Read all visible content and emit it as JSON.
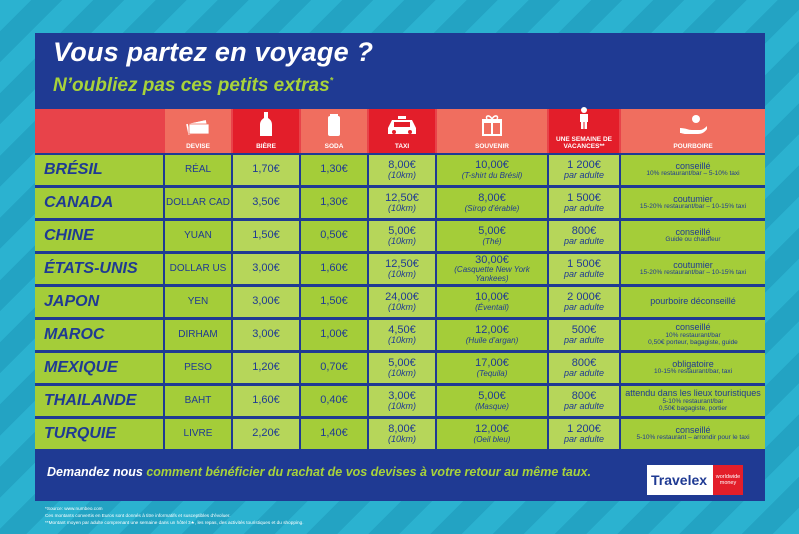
{
  "title": "Vous partez en voyage ?",
  "subtitle": "N’oubliez pas ces petits extras",
  "subtitle_mark": "*",
  "headers": {
    "devise": "DEVISE",
    "biere": "BIÈRE",
    "soda": "SODA",
    "taxi": "TAXI",
    "souvenir": "SOUVENIR",
    "semaine": "UNE SEMAINE DE VACANCES**",
    "pourboire": "POURBOIRE"
  },
  "icons": {
    "devise": "banknotes-icon",
    "biere": "bottle-icon",
    "soda": "can-icon",
    "taxi": "taxi-icon",
    "souvenir": "gift-icon",
    "semaine": "person-icon",
    "pourboire": "tip-hand-icon"
  },
  "rows": [
    {
      "country": "BRÉSIL",
      "devise": "RÉAL",
      "biere": "1,70€",
      "soda": "1,30€",
      "taxi": "8,00€",
      "taxi_sub": "(10km)",
      "souvenir": "10,00€",
      "souvenir_sub": "(T-shirt du Brésil)",
      "semaine": "1 200€",
      "semaine_sub": "par adulte",
      "pourboire": "conseillé",
      "pourboire_sub": "10% restaurant/bar – 5-10% taxi",
      "pourboire_sub2": ""
    },
    {
      "country": "CANADA",
      "devise": "DOLLAR CAD",
      "biere": "3,50€",
      "soda": "1,30€",
      "taxi": "12,50€",
      "taxi_sub": "(10km)",
      "souvenir": "8,00€",
      "souvenir_sub": "(Sirop d’érable)",
      "semaine": "1 500€",
      "semaine_sub": "par adulte",
      "pourboire": "coutumier",
      "pourboire_sub": "15-20% restaurant/bar – 10-15% taxi",
      "pourboire_sub2": ""
    },
    {
      "country": "CHINE",
      "devise": "YUAN",
      "biere": "1,50€",
      "soda": "0,50€",
      "taxi": "5,00€",
      "taxi_sub": "(10km)",
      "souvenir": "5,00€",
      "souvenir_sub": "(Thé)",
      "semaine": "800€",
      "semaine_sub": "par adulte",
      "pourboire": "conseillé",
      "pourboire_sub": "Guide ou chauffeur",
      "pourboire_sub2": ""
    },
    {
      "country": "ÉTATS-UNIS",
      "devise": "DOLLAR US",
      "biere": "3,00€",
      "soda": "1,60€",
      "taxi": "12,50€",
      "taxi_sub": "(10km)",
      "souvenir": "30,00€",
      "souvenir_sub": "(Casquette New York Yankees)",
      "semaine": "1 500€",
      "semaine_sub": "par adulte",
      "pourboire": "coutumier",
      "pourboire_sub": "15-20% restaurant/bar – 10-15% taxi",
      "pourboire_sub2": ""
    },
    {
      "country": "JAPON",
      "devise": "YEN",
      "biere": "3,00€",
      "soda": "1,50€",
      "taxi": "24,00€",
      "taxi_sub": "(10km)",
      "souvenir": "10,00€",
      "souvenir_sub": "(Éventail)",
      "semaine": "2 000€",
      "semaine_sub": "par adulte",
      "pourboire": "pourboire déconseillé",
      "pourboire_sub": "",
      "pourboire_sub2": ""
    },
    {
      "country": "MAROC",
      "devise": "DIRHAM",
      "biere": "3,00€",
      "soda": "1,00€",
      "taxi": "4,50€",
      "taxi_sub": "(10km)",
      "souvenir": "12,00€",
      "souvenir_sub": "(Huile d’argan)",
      "semaine": "500€",
      "semaine_sub": "par adulte",
      "pourboire": "conseillé",
      "pourboire_sub": "10% restaurant/bar",
      "pourboire_sub2": "0,50€ porteur, bagagiste, guide"
    },
    {
      "country": "MEXIQUE",
      "devise": "PESO",
      "biere": "1,20€",
      "soda": "0,70€",
      "taxi": "5,00€",
      "taxi_sub": "(10km)",
      "souvenir": "17,00€",
      "souvenir_sub": "(Tequila)",
      "semaine": "800€",
      "semaine_sub": "par adulte",
      "pourboire": "obligatoire",
      "pourboire_sub": "10-15% restaurant/bar, taxi",
      "pourboire_sub2": ""
    },
    {
      "country": "THAILANDE",
      "devise": "BAHT",
      "biere": "1,60€",
      "soda": "0,40€",
      "taxi": "3,00€",
      "taxi_sub": "(10km)",
      "souvenir": "5,00€",
      "souvenir_sub": "(Masque)",
      "semaine": "800€",
      "semaine_sub": "par adulte",
      "pourboire": "attendu dans les lieux touristiques",
      "pourboire_sub": "5-10% restaurant/bar",
      "pourboire_sub2": "0,50€ bagagiste, portier"
    },
    {
      "country": "TURQUIE",
      "devise": "LIVRE",
      "biere": "2,20€",
      "soda": "1,40€",
      "taxi": "8,00€",
      "taxi_sub": "(10km)",
      "souvenir": "12,00€",
      "souvenir_sub": "(Oeil bleu)",
      "semaine": "1 200€",
      "semaine_sub": "par adulte",
      "pourboire": "conseillé",
      "pourboire_sub": "5-10% restaurant – arrondir pour le taxi",
      "pourboire_sub2": ""
    }
  ],
  "promo_white": "Demandez nous",
  "promo_green": "comment bénéficier du rachat de vos devises à votre retour au même taux.",
  "logo_text": "Travelex",
  "logo_badge": "worldwide money",
  "footnotes": [
    "*Source: www.numbeo.com",
    "Ces montants convertis en Euros sont donnés à titre informatifs et susceptibles d’évoluer.",
    "**Montant moyen par adulte comprenant une semaine dans un hôtel 3★, les repas, des activités touristiques et du shopping."
  ],
  "colors": {
    "navy": "#1f3a93",
    "green": "#a4cd39",
    "red": "#e8434a",
    "sky": "#25a9c8"
  }
}
